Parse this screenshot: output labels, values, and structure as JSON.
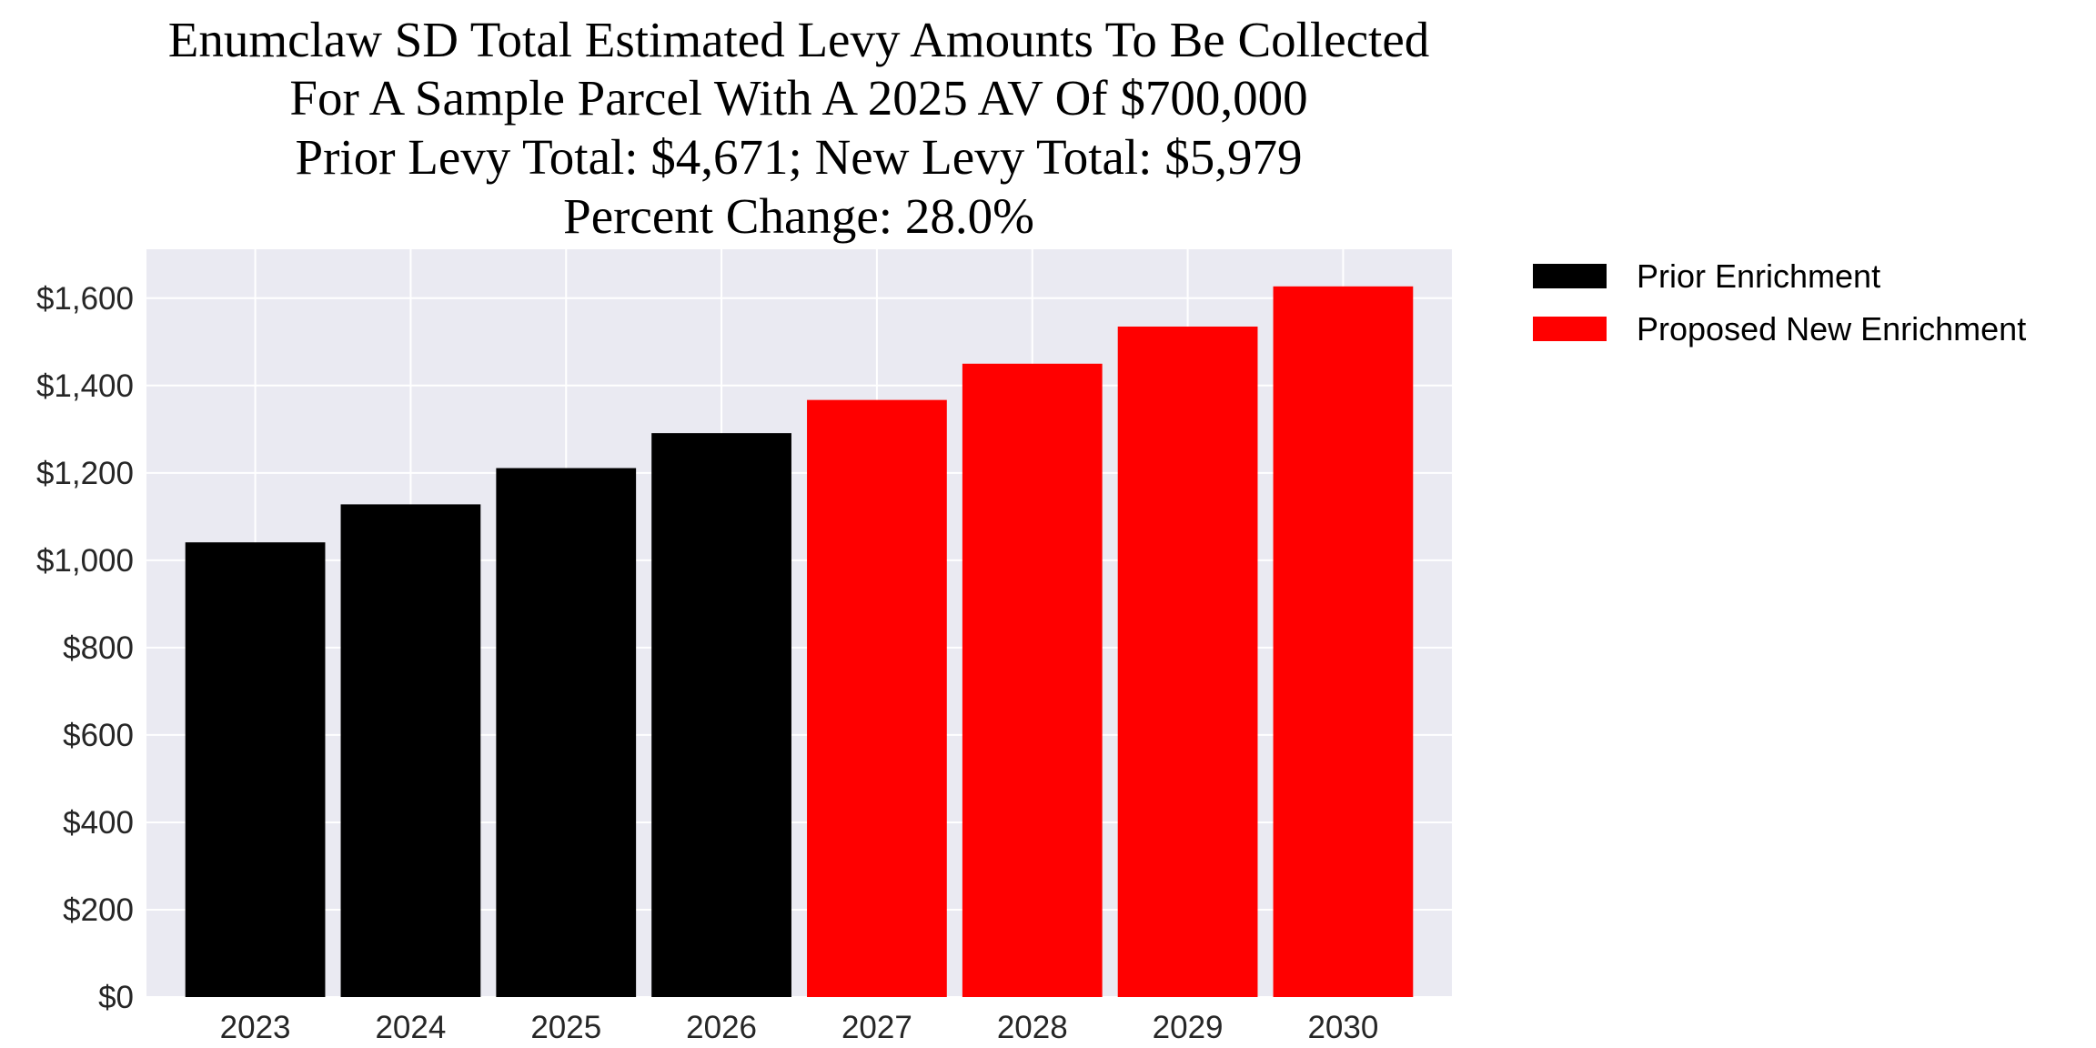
{
  "chart_data": {
    "type": "bar",
    "title_lines": [
      "Enumclaw SD Total Estimated Levy Amounts To Be Collected",
      "For A Sample Parcel With A 2025 AV Of $700,000",
      "Prior Levy Total:  $4,671; New Levy Total: $5,979",
      "Percent Change: 28.0%"
    ],
    "categories": [
      "2023",
      "2024",
      "2025",
      "2026",
      "2027",
      "2028",
      "2029",
      "2030"
    ],
    "values": [
      1041,
      1128,
      1211,
      1291,
      1367,
      1450,
      1535,
      1627
    ],
    "series_of_bar": [
      "Prior Enrichment",
      "Prior Enrichment",
      "Prior Enrichment",
      "Prior Enrichment",
      "Proposed New Enrichment",
      "Proposed New Enrichment",
      "Proposed New Enrichment",
      "Proposed New Enrichment"
    ],
    "legend": [
      {
        "name": "Prior Enrichment",
        "color": "#000000"
      },
      {
        "name": "Proposed New Enrichment",
        "color": "#ff0000"
      }
    ],
    "legend_placement": "outside-top-right",
    "yticks": [
      0,
      200,
      400,
      600,
      800,
      1000,
      1200,
      1400,
      1600
    ],
    "ytick_labels": [
      "$0",
      "$200",
      "$400",
      "$600",
      "$800",
      "$1,000",
      "$1,200",
      "$1,400",
      "$1,600"
    ],
    "ylim": [
      0,
      1712
    ],
    "grid": true,
    "background": "#eaeaf2",
    "xlabel": "",
    "ylabel": ""
  }
}
